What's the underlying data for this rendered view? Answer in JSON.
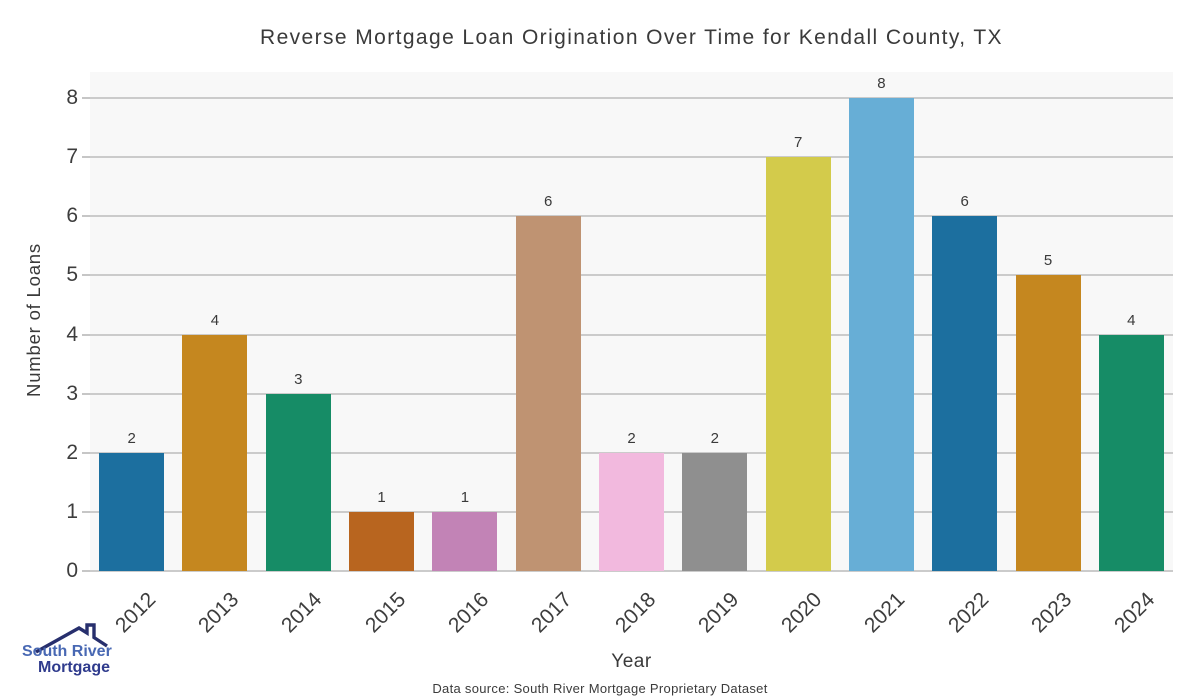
{
  "header": {
    "title": "Reverse Mortgage Loan Origination Over Time for Kendall County, TX"
  },
  "footer": {
    "source_text": "Data source: South River Mortgage Proprietary Dataset"
  },
  "logo": {
    "line1": "South River",
    "line2": "Mortgage",
    "line1_color": "#4868b3",
    "line2_color": "#2f3b8d",
    "roof_color": "#272f6d"
  },
  "chart_data": {
    "type": "bar",
    "title": "Reverse Mortgage Loan Origination Over Time for Kendall County, TX",
    "xlabel": "Year",
    "ylabel": "Number of Loans",
    "categories": [
      "2012",
      "2013",
      "2014",
      "2015",
      "2016",
      "2017",
      "2018",
      "2019",
      "2020",
      "2021",
      "2022",
      "2023",
      "2024"
    ],
    "values": [
      2,
      4,
      3,
      1,
      1,
      6,
      2,
      2,
      7,
      8,
      6,
      5,
      4
    ],
    "bar_colors": [
      "#1c6f9f",
      "#c5871f",
      "#168c66",
      "#b8651f",
      "#c283b6",
      "#bf9372",
      "#f2b9de",
      "#8f8f8f",
      "#d3cb4b",
      "#67aed6",
      "#1c6f9f",
      "#c5871f",
      "#168c66"
    ],
    "ylim": [
      0,
      8
    ],
    "yticks": [
      0,
      1,
      2,
      3,
      4,
      5,
      6,
      7,
      8
    ],
    "grid": true,
    "legend": "none",
    "xtick_rotation": 45,
    "plot_bg": "#f8f8f8",
    "grid_color": "#cbcbcb",
    "tick_dash_color": "#c6c6c6",
    "text_color": "#3a3a3a"
  }
}
